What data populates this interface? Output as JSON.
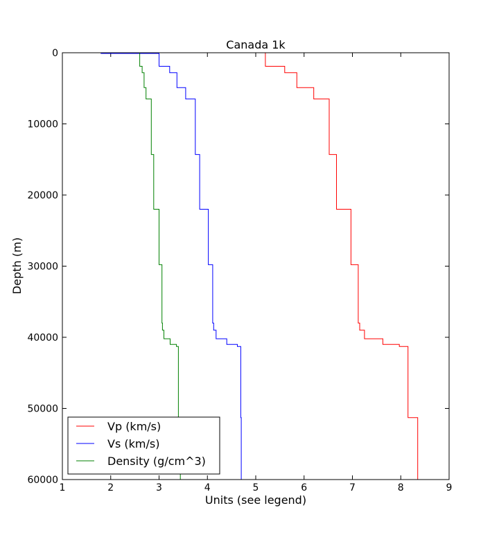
{
  "chart_data": {
    "type": "line",
    "title": "Canada 1k",
    "xlabel": "Units (see legend)",
    "ylabel": "Depth (m)",
    "xlim": [
      1,
      9
    ],
    "ylim": [
      0,
      60000
    ],
    "y_inverted": true,
    "x_ticks": [
      "1",
      "2",
      "3",
      "4",
      "5",
      "6",
      "7",
      "8",
      "9"
    ],
    "y_ticks": [
      "0",
      "10000",
      "20000",
      "30000",
      "40000",
      "50000",
      "60000"
    ],
    "grid": false,
    "legend_position": "bottom-left",
    "series": [
      {
        "name": "Vp (km/s)",
        "color": "#ff0000",
        "points": [
          [
            1.0,
            0
          ],
          [
            5.2,
            0
          ],
          [
            5.2,
            1900
          ],
          [
            5.6,
            1900
          ],
          [
            5.6,
            2800
          ],
          [
            5.85,
            2800
          ],
          [
            5.85,
            4900
          ],
          [
            6.2,
            4900
          ],
          [
            6.2,
            6500
          ],
          [
            6.52,
            6500
          ],
          [
            6.52,
            14300
          ],
          [
            6.67,
            14300
          ],
          [
            6.67,
            22000
          ],
          [
            6.97,
            22000
          ],
          [
            6.97,
            29800
          ],
          [
            7.12,
            29800
          ],
          [
            7.12,
            38000
          ],
          [
            7.15,
            38000
          ],
          [
            7.15,
            39000
          ],
          [
            7.25,
            39000
          ],
          [
            7.25,
            40200
          ],
          [
            7.63,
            40200
          ],
          [
            7.63,
            41000
          ],
          [
            7.97,
            41000
          ],
          [
            7.97,
            41300
          ],
          [
            8.15,
            41300
          ],
          [
            8.15,
            51300
          ],
          [
            8.35,
            51300
          ],
          [
            8.35,
            60000
          ]
        ]
      },
      {
        "name": "Vs (km/s)",
        "color": "#0000ff",
        "points": [
          [
            1.0,
            0
          ],
          [
            1.8,
            0
          ],
          [
            1.8,
            100
          ],
          [
            3.0,
            100
          ],
          [
            3.0,
            1900
          ],
          [
            3.22,
            1900
          ],
          [
            3.22,
            2800
          ],
          [
            3.37,
            2800
          ],
          [
            3.37,
            4900
          ],
          [
            3.55,
            4900
          ],
          [
            3.55,
            6500
          ],
          [
            3.75,
            6500
          ],
          [
            3.75,
            14300
          ],
          [
            3.84,
            14300
          ],
          [
            3.84,
            22000
          ],
          [
            4.02,
            22000
          ],
          [
            4.02,
            29800
          ],
          [
            4.11,
            29800
          ],
          [
            4.11,
            38000
          ],
          [
            4.13,
            38000
          ],
          [
            4.13,
            39000
          ],
          [
            4.18,
            39000
          ],
          [
            4.18,
            40200
          ],
          [
            4.4,
            40200
          ],
          [
            4.4,
            41000
          ],
          [
            4.62,
            41000
          ],
          [
            4.62,
            41300
          ],
          [
            4.69,
            41300
          ],
          [
            4.69,
            51300
          ],
          [
            4.7,
            51300
          ],
          [
            4.7,
            60000
          ]
        ]
      },
      {
        "name": "Density (g/cm^3)",
        "color": "#008000",
        "points": [
          [
            1.0,
            0
          ],
          [
            2.6,
            0
          ],
          [
            2.6,
            1900
          ],
          [
            2.65,
            1900
          ],
          [
            2.65,
            2800
          ],
          [
            2.69,
            2800
          ],
          [
            2.69,
            4900
          ],
          [
            2.73,
            4900
          ],
          [
            2.73,
            6500
          ],
          [
            2.84,
            6500
          ],
          [
            2.84,
            14300
          ],
          [
            2.89,
            14300
          ],
          [
            2.89,
            22000
          ],
          [
            3.0,
            22000
          ],
          [
            3.0,
            29800
          ],
          [
            3.06,
            29800
          ],
          [
            3.06,
            38000
          ],
          [
            3.07,
            38000
          ],
          [
            3.07,
            39000
          ],
          [
            3.1,
            39000
          ],
          [
            3.1,
            40200
          ],
          [
            3.23,
            40200
          ],
          [
            3.23,
            41000
          ],
          [
            3.36,
            41000
          ],
          [
            3.36,
            41300
          ],
          [
            3.4,
            41300
          ],
          [
            3.4,
            51300
          ],
          [
            3.44,
            51300
          ],
          [
            3.44,
            60000
          ]
        ]
      }
    ]
  }
}
